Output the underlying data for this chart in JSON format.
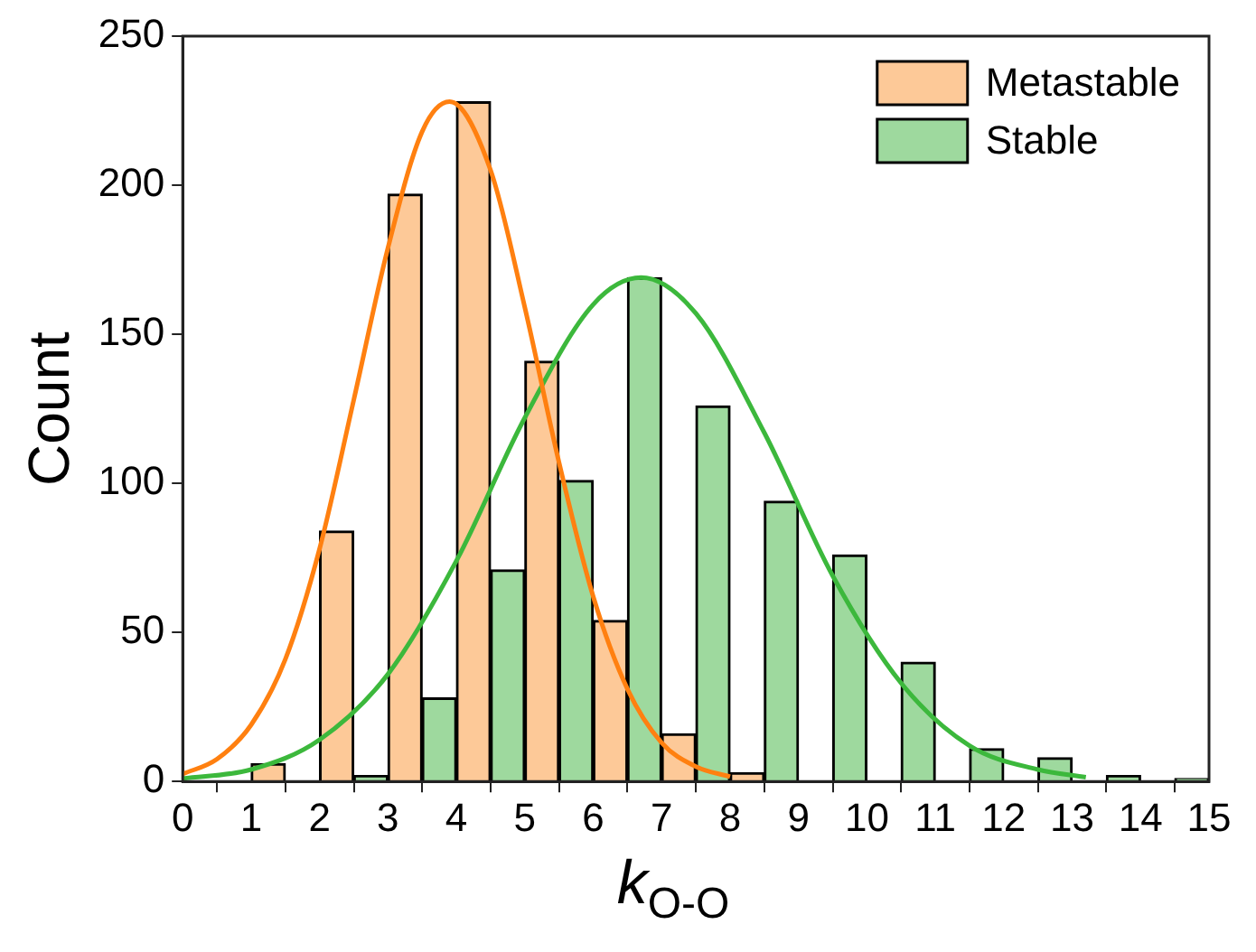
{
  "chart_data": {
    "type": "bar",
    "xlabel": "k$_{O-O}$",
    "ylabel": "Count",
    "xlim": [
      0,
      15
    ],
    "xticks": [
      0,
      1,
      2,
      3,
      4,
      5,
      6,
      7,
      8,
      9,
      10,
      11,
      12,
      13,
      14,
      15
    ],
    "ylim": [
      0,
      250
    ],
    "yticks": [
      0,
      50,
      100,
      150,
      200,
      250
    ],
    "grid": false,
    "legend": "top right",
    "series": [
      {
        "name": "Metastable",
        "color": "#fdc998",
        "x": [
          1.25,
          2.25,
          3.25,
          4.25,
          5.25,
          6.25,
          7.25,
          8.25
        ],
        "values": [
          6,
          84,
          197,
          228,
          141,
          54,
          16,
          3
        ]
      },
      {
        "name": "Stable",
        "color": "#9ed99e",
        "x": [
          2.75,
          3.75,
          4.75,
          5.75,
          6.75,
          7.75,
          8.75,
          9.75,
          10.75,
          11.75,
          12.75,
          13.75,
          14.75
        ],
        "values": [
          2,
          28,
          71,
          101,
          169,
          126,
          94,
          76,
          40,
          11,
          8,
          2,
          1
        ]
      },
      {
        "type": "line",
        "color": "#ff8010",
        "marker": "none",
        "x": [
          0,
          0.5,
          1,
          1.5,
          2,
          2.5,
          3,
          3.5,
          3.9,
          4.5,
          5,
          5.5,
          6,
          6.5,
          7,
          7.5,
          8
        ],
        "values": [
          2.5,
          7.5,
          19,
          41,
          78,
          128,
          179,
          218,
          228,
          205,
          159,
          107,
          62,
          31,
          13,
          5,
          1.6
        ]
      },
      {
        "type": "line",
        "color": "#3cb83c",
        "marker": "none",
        "x": [
          0,
          1,
          2,
          3,
          4,
          5,
          6,
          6.7,
          7.5,
          8.5,
          9.5,
          10.5,
          11.5,
          12.5,
          13.2
        ],
        "values": [
          1,
          4,
          14,
          36,
          74,
          122,
          160,
          169,
          157,
          117,
          69,
          33,
          12,
          4,
          1.4
        ]
      }
    ]
  }
}
